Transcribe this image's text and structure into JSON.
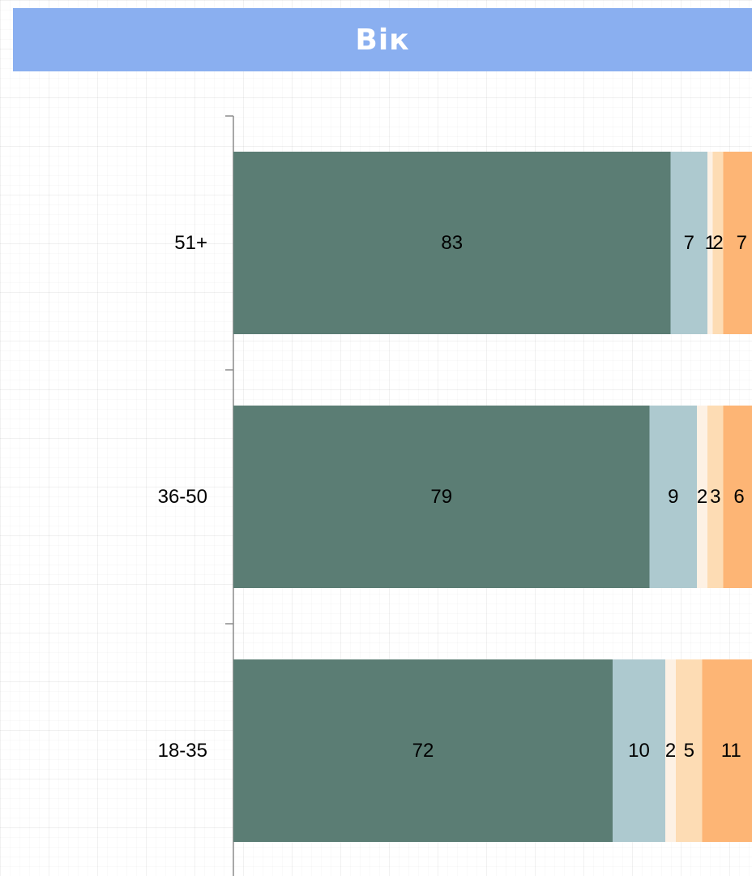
{
  "title": "Вік",
  "chart_data": {
    "type": "bar",
    "orientation": "horizontal",
    "stacked": true,
    "title": "Вік",
    "categories": [
      "51+",
      "36-50",
      "18-35"
    ],
    "series": [
      {
        "values": [
          83,
          79,
          72
        ],
        "color": "#5b7d74"
      },
      {
        "values": [
          7,
          9,
          10
        ],
        "color": "#adc9cf"
      },
      {
        "values": [
          1,
          2,
          2
        ],
        "color": "#fdf1e4"
      },
      {
        "values": [
          2,
          3,
          5
        ],
        "color": "#fddcb4"
      },
      {
        "values": [
          7,
          6,
          11
        ],
        "color": "#fdb575"
      }
    ],
    "legend": false,
    "grid": false
  }
}
